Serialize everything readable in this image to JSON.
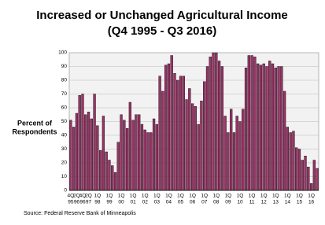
{
  "chart_data": {
    "type": "bar",
    "title": "Increased or Unchanged Agricultural Income",
    "subtitle": "(Q4 1995 - Q3 2016)",
    "y_label": [
      "Percent of",
      "Respondents"
    ],
    "source": "Source: Federal Reserve Bank of Minneapolis",
    "categories": [
      [
        "4Q",
        "95"
      ],
      null,
      [
        "2Q",
        "96"
      ],
      null,
      [
        "4Q",
        "96"
      ],
      null,
      [
        "2Q",
        "97"
      ],
      null,
      null,
      [
        "1Q",
        "98"
      ],
      null,
      null,
      null,
      [
        "1Q",
        "99"
      ],
      null,
      null,
      null,
      [
        "1Q",
        "00"
      ],
      null,
      null,
      null,
      [
        "1Q",
        "01"
      ],
      null,
      null,
      null,
      [
        "1Q",
        "02"
      ],
      null,
      null,
      null,
      [
        "1Q",
        "03"
      ],
      null,
      null,
      null,
      [
        "1Q",
        "04"
      ],
      null,
      null,
      null,
      [
        "1Q",
        "05"
      ],
      null,
      null,
      null,
      [
        "1Q",
        "06"
      ],
      null,
      null,
      null,
      [
        "1Q",
        "07"
      ],
      null,
      null,
      null,
      [
        "1Q",
        "08"
      ],
      null,
      null,
      null,
      [
        "1Q",
        "09"
      ],
      null,
      null,
      null,
      [
        "1Q",
        "10"
      ],
      null,
      null,
      null,
      [
        "1Q",
        "11"
      ],
      null,
      null,
      null,
      [
        "1Q",
        "12"
      ],
      null,
      null,
      null,
      [
        "1Q",
        "13"
      ],
      null,
      null,
      null,
      [
        "1Q",
        "14"
      ],
      null,
      null,
      null,
      [
        "1Q",
        "15"
      ],
      null,
      null,
      null,
      [
        "1Q",
        "16"
      ],
      null,
      null
    ],
    "values": [
      51,
      46,
      56,
      69,
      70,
      55,
      57,
      52,
      70,
      47,
      29,
      54,
      28,
      22,
      18,
      13,
      35,
      55,
      51,
      45,
      64,
      51,
      55,
      55,
      48,
      44,
      42,
      42,
      52,
      48,
      83,
      72,
      91,
      92,
      98,
      85,
      80,
      83,
      83,
      66,
      74,
      63,
      61,
      48,
      65,
      79,
      90,
      97,
      100,
      100,
      94,
      90,
      54,
      42,
      59,
      42,
      54,
      50,
      59,
      89,
      98,
      98,
      97,
      92,
      91,
      92,
      90,
      94,
      92,
      89,
      90,
      90,
      72,
      46,
      42,
      43,
      31,
      30,
      22,
      25,
      17,
      5,
      22,
      16
    ],
    "color": "#993366",
    "ylim": [
      0,
      100
    ],
    "yticks": [
      0,
      10,
      20,
      30,
      40,
      50,
      60,
      70,
      80,
      90,
      100
    ],
    "grid": true
  }
}
